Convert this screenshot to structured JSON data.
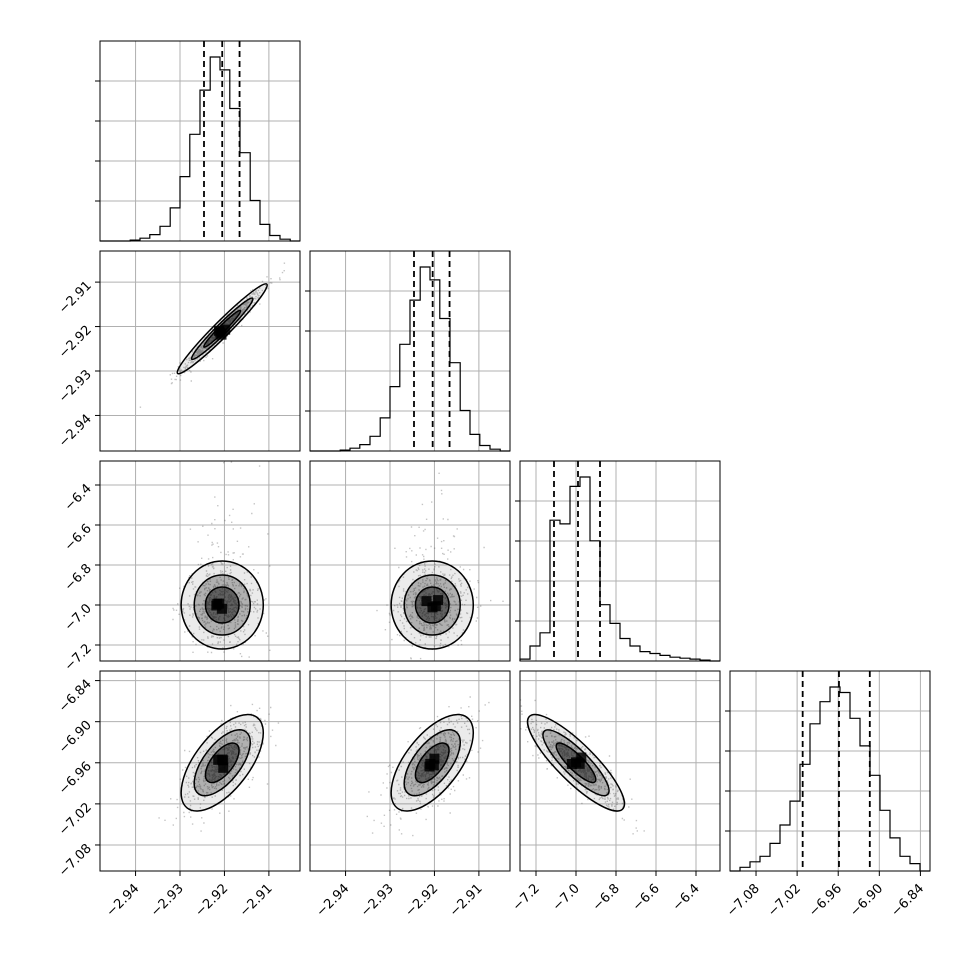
{
  "chart_data": {
    "type": "corner",
    "parameters": 4,
    "grid": true,
    "axes": {
      "p1": {
        "range": [
          -2.948,
          -2.903
        ],
        "ticks": [
          -2.94,
          -2.93,
          -2.92,
          -2.91
        ],
        "tick_labels": [
          "−2.94",
          "−2.93",
          "−2.92",
          "−2.91"
        ]
      },
      "p2": {
        "range": [
          -2.948,
          -2.903
        ],
        "ticks": [
          -2.94,
          -2.93,
          -2.92,
          -2.91
        ],
        "tick_labels": [
          "−2.94",
          "−2.93",
          "−2.92",
          "−2.91"
        ]
      },
      "p3": {
        "range": [
          -7.28,
          -6.28
        ],
        "ticks": [
          -7.2,
          -7.0,
          -6.8,
          -6.6,
          -6.4
        ],
        "tick_labels": [
          "−7.2",
          "−7.0",
          "−6.8",
          "−6.6",
          "−6.4"
        ]
      },
      "p4": {
        "range": [
          -7.118,
          -6.826
        ],
        "ticks": [
          -7.08,
          -7.02,
          -6.96,
          -6.9,
          -6.84
        ],
        "tick_labels": [
          "−7.08",
          "−7.02",
          "−6.96",
          "−6.90",
          "−6.84"
        ]
      }
    },
    "marginals": [
      {
        "param": "p1",
        "quantiles": [
          -2.9246,
          -2.9205,
          -2.9166
        ],
        "bin_edges": [
          -2.948,
          -2.9458,
          -2.9435,
          -2.9412,
          -2.939,
          -2.9368,
          -2.9345,
          -2.9322,
          -2.93,
          -2.9278,
          -2.9255,
          -2.9232,
          -2.921,
          -2.9188,
          -2.9165,
          -2.9142,
          -2.912,
          -2.9098,
          -2.9075,
          -2.9052,
          -2.903
        ],
        "counts": [
          0,
          0,
          0,
          0.5,
          1.5,
          3.5,
          8,
          18,
          35,
          58,
          82,
          100,
          93,
          72,
          48,
          22,
          9,
          3,
          1,
          0
        ]
      },
      {
        "param": "p2",
        "quantiles": [
          -2.9246,
          -2.9204,
          -2.9166
        ],
        "bin_edges": [
          -2.948,
          -2.9458,
          -2.9435,
          -2.9412,
          -2.939,
          -2.9368,
          -2.9345,
          -2.9322,
          -2.93,
          -2.9278,
          -2.9255,
          -2.9232,
          -2.921,
          -2.9188,
          -2.9165,
          -2.9142,
          -2.912,
          -2.9098,
          -2.9075,
          -2.9052,
          -2.903
        ],
        "counts": [
          0,
          0,
          0,
          0.5,
          1.5,
          3.5,
          8,
          18,
          35,
          58,
          82,
          100,
          93,
          72,
          48,
          22,
          9,
          3,
          1,
          0
        ]
      },
      {
        "param": "p3",
        "quantiles": [
          -7.11,
          -6.99,
          -6.88
        ],
        "bin_edges": [
          -7.28,
          -7.23,
          -7.18,
          -7.13,
          -7.08,
          -7.03,
          -6.98,
          -6.93,
          -6.88,
          -6.83,
          -6.78,
          -6.73,
          -6.68,
          -6.63,
          -6.58,
          -6.53,
          -6.48,
          -6.43,
          -6.38,
          -6.33,
          -6.28
        ],
        "counts": [
          1,
          8,
          15,
          75,
          73,
          93,
          98,
          64,
          30,
          20,
          12,
          8,
          5,
          4,
          3,
          2,
          1.5,
          1,
          0.5,
          0
        ]
      },
      {
        "param": "p4",
        "quantiles": [
          -7.0119,
          -6.9589,
          -6.9139
        ],
        "bin_edges": [
          -7.118,
          -7.1034,
          -7.0888,
          -7.0742,
          -7.0596,
          -7.045,
          -7.0304,
          -7.0158,
          -7.0012,
          -6.9866,
          -6.972,
          -6.9574,
          -6.9428,
          -6.9282,
          -6.9136,
          -6.899,
          -6.8844,
          -6.8698,
          -6.8552,
          -6.8406,
          -6.826
        ],
        "counts": [
          0,
          2,
          5,
          8,
          15,
          25,
          38,
          58,
          80,
          92,
          100,
          97,
          83,
          68,
          52,
          33,
          18,
          8,
          4,
          0
        ]
      }
    ],
    "joint_panels": [
      {
        "x": "p1",
        "y": "p2",
        "center": [
          -2.9205,
          -2.9205
        ],
        "sd": [
          0.0046,
          0.0046
        ],
        "corr": 0.97
      },
      {
        "x": "p1",
        "y": "p3",
        "center": [
          -2.9205,
          -7.0
        ],
        "sd": [
          0.0042,
          0.1
        ],
        "corr": 0.0
      },
      {
        "x": "p2",
        "y": "p3",
        "center": [
          -2.9205,
          -7.0
        ],
        "sd": [
          0.0042,
          0.1
        ],
        "corr": 0.0
      },
      {
        "x": "p1",
        "y": "p4",
        "center": [
          -2.9205,
          -6.96
        ],
        "sd": [
          0.0042,
          0.032
        ],
        "corr": 0.62
      },
      {
        "x": "p2",
        "y": "p4",
        "center": [
          -2.9205,
          -6.96
        ],
        "sd": [
          0.0042,
          0.032
        ],
        "corr": 0.62
      },
      {
        "x": "p3",
        "y": "p4",
        "center": [
          -7.0,
          -6.96
        ],
        "sd": [
          0.11,
          0.032
        ],
        "corr": -0.85
      }
    ],
    "colors": {
      "line": "#000000",
      "grid": "#b0b0b0",
      "points": "#555555",
      "density": "#000000"
    }
  }
}
